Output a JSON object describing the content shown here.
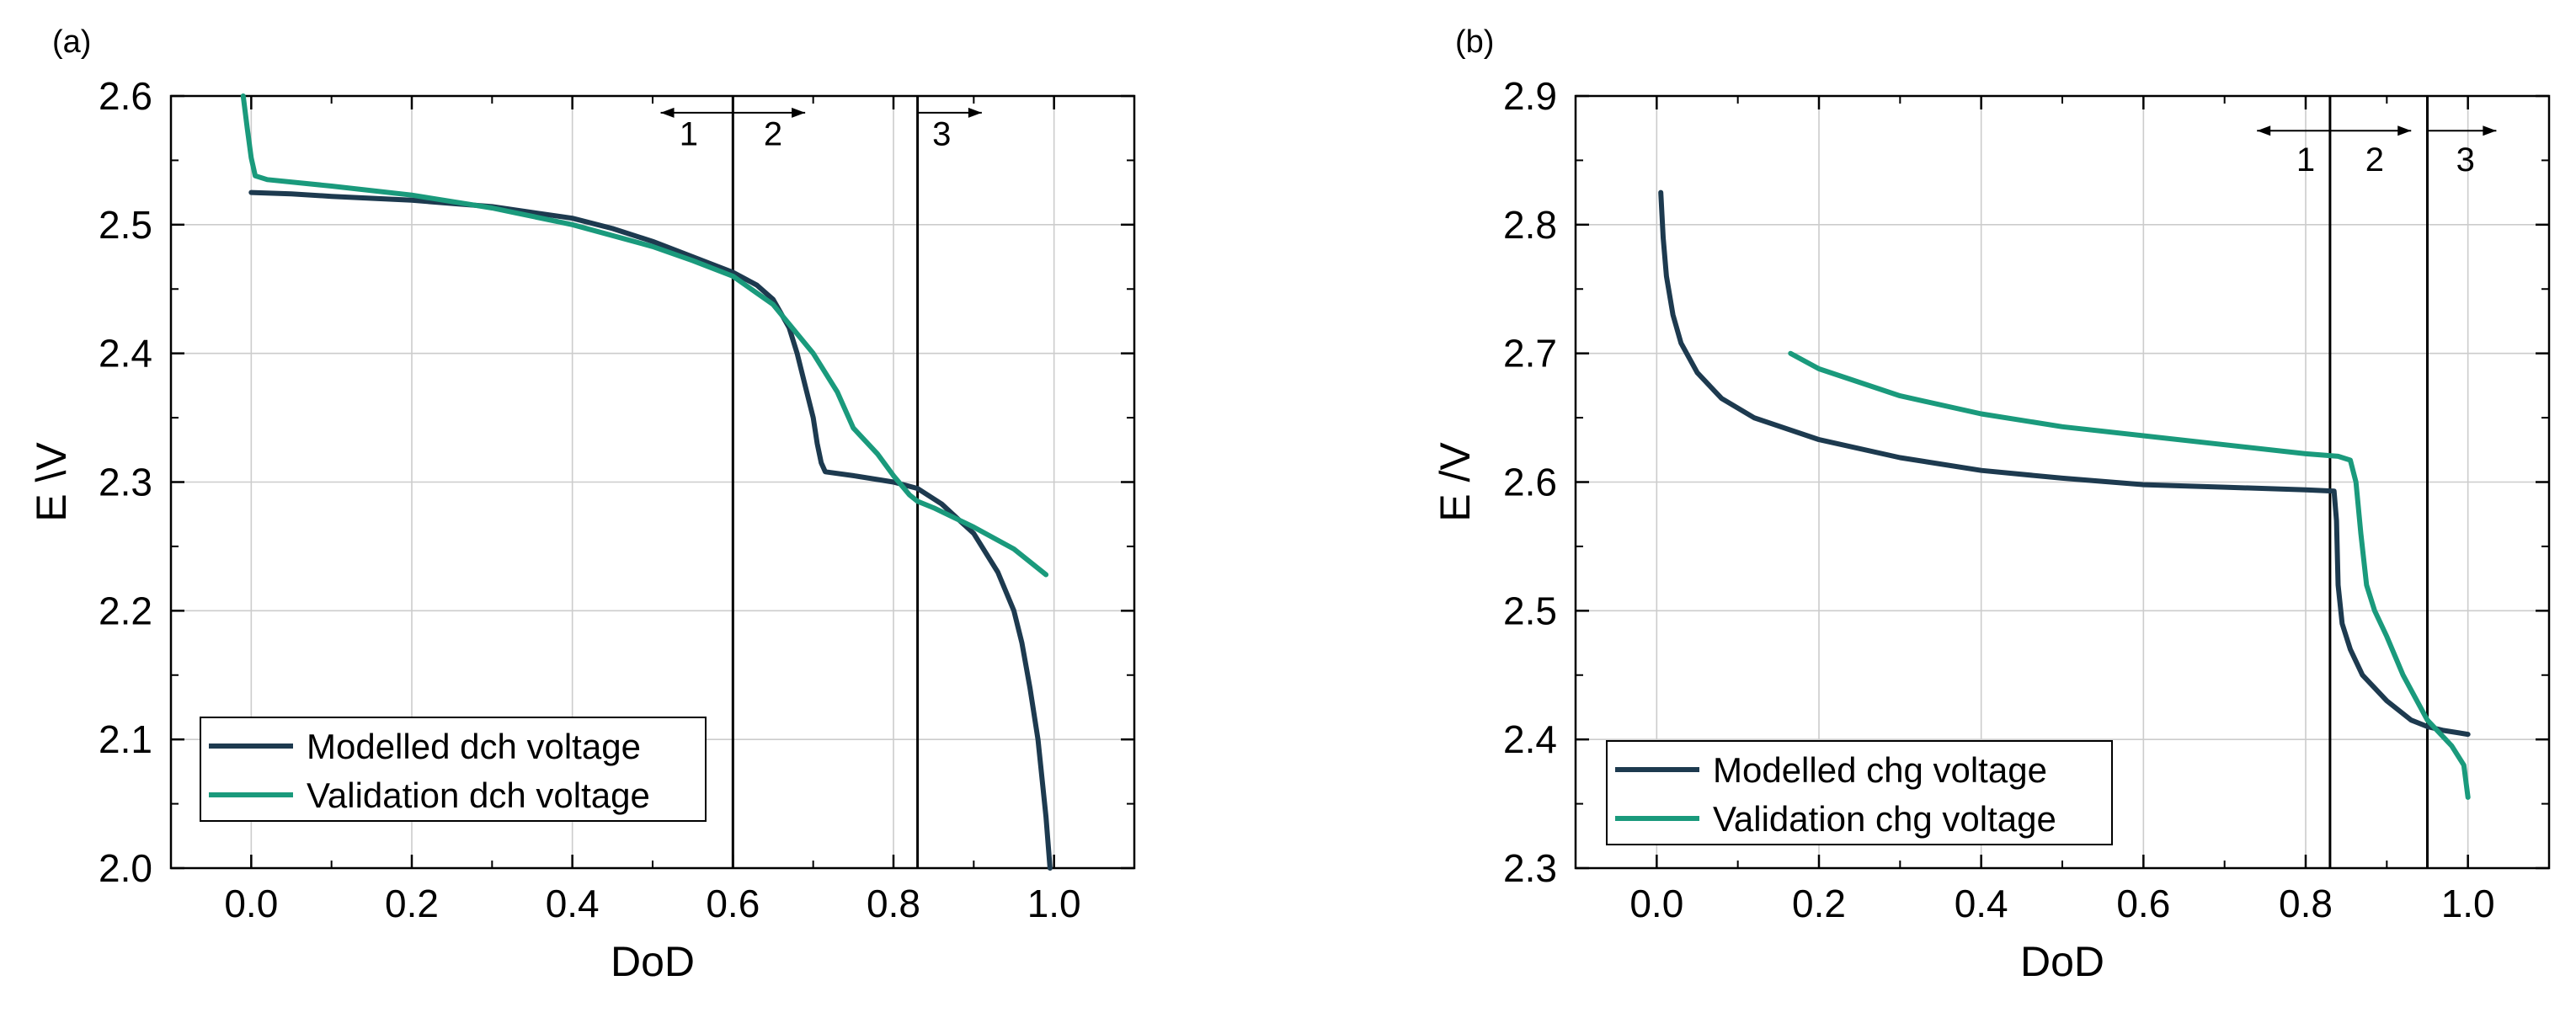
{
  "colors": {
    "modelled": "#1d3a4f",
    "validation": "#1a9a7c"
  },
  "chart_data": [
    {
      "type": "line",
      "panel_label": "(a)",
      "xlabel": "DoD",
      "ylabel": "E \\V",
      "xlim": [
        -0.1,
        1.1
      ],
      "ylim": [
        2.0,
        2.6
      ],
      "xticks": [
        0.0,
        0.2,
        0.4,
        0.6,
        0.8,
        1.0
      ],
      "xtick_labels": [
        "0.0",
        "0.2",
        "0.4",
        "0.6",
        "0.8",
        "1.0"
      ],
      "yticks": [
        2.0,
        2.1,
        2.2,
        2.3,
        2.4,
        2.5,
        2.6
      ],
      "ytick_labels": [
        "2.0",
        "2.1",
        "2.2",
        "2.3",
        "2.4",
        "2.5",
        "2.6"
      ],
      "grid": true,
      "legend_position": "bottom-left",
      "boundaries": [
        0.6,
        0.83
      ],
      "regions": [
        {
          "label": "1",
          "x": 0.545,
          "arrow_from": 0.6,
          "arrow_to": 0.51
        },
        {
          "label": "2",
          "x": 0.65,
          "arrow_from": 0.6,
          "arrow_to": 0.69
        },
        {
          "label": "3",
          "x": 0.86,
          "arrow_from": 0.83,
          "arrow_to": 0.91
        }
      ],
      "region_label_y": 2.571,
      "arrow_y": 2.587,
      "series": [
        {
          "name": "Modelled dch voltage",
          "color_key": "modelled",
          "x": [
            0.0,
            0.05,
            0.1,
            0.2,
            0.3,
            0.4,
            0.45,
            0.5,
            0.55,
            0.6,
            0.63,
            0.65,
            0.67,
            0.68,
            0.69,
            0.7,
            0.705,
            0.71,
            0.715,
            0.75,
            0.8,
            0.83,
            0.86,
            0.9,
            0.93,
            0.95,
            0.96,
            0.97,
            0.98,
            0.99,
            0.995
          ],
          "y": [
            2.525,
            2.524,
            2.522,
            2.519,
            2.514,
            2.505,
            2.497,
            2.487,
            2.475,
            2.463,
            2.453,
            2.442,
            2.42,
            2.4,
            2.375,
            2.35,
            2.33,
            2.315,
            2.308,
            2.305,
            2.3,
            2.295,
            2.283,
            2.26,
            2.23,
            2.2,
            2.175,
            2.14,
            2.1,
            2.04,
            2.0
          ]
        },
        {
          "name": "Validation dch voltage",
          "color_key": "validation",
          "x": [
            -0.01,
            -0.005,
            0.0,
            0.005,
            0.02,
            0.1,
            0.2,
            0.3,
            0.4,
            0.5,
            0.55,
            0.6,
            0.65,
            0.7,
            0.73,
            0.75,
            0.78,
            0.8,
            0.82,
            0.83,
            0.85,
            0.9,
            0.95,
            0.99
          ],
          "y": [
            2.6,
            2.575,
            2.552,
            2.538,
            2.535,
            2.53,
            2.523,
            2.513,
            2.5,
            2.483,
            2.472,
            2.46,
            2.438,
            2.4,
            2.37,
            2.342,
            2.322,
            2.305,
            2.29,
            2.285,
            2.28,
            2.265,
            2.248,
            2.228
          ]
        }
      ]
    },
    {
      "type": "line",
      "panel_label": "(b)",
      "xlabel": "DoD",
      "ylabel": "E /V",
      "xlim": [
        -0.1,
        1.1
      ],
      "ylim": [
        2.3,
        2.9
      ],
      "xticks": [
        0.0,
        0.2,
        0.4,
        0.6,
        0.8,
        1.0
      ],
      "xtick_labels": [
        "0.0",
        "0.2",
        "0.4",
        "0.6",
        "0.8",
        "1.0"
      ],
      "yticks": [
        2.3,
        2.4,
        2.5,
        2.6,
        2.7,
        2.8,
        2.9
      ],
      "ytick_labels": [
        "2.3",
        "2.4",
        "2.5",
        "2.6",
        "2.7",
        "2.8",
        "2.9"
      ],
      "grid": true,
      "legend_position": "bottom-left",
      "boundaries": [
        0.83,
        0.95
      ],
      "regions": [
        {
          "label": "1",
          "x": 0.8,
          "arrow_from": 0.83,
          "arrow_to": 0.74
        },
        {
          "label": "2",
          "x": 0.885,
          "arrow_from": 0.83,
          "arrow_to": 0.93
        },
        {
          "label": "3",
          "x": 0.997,
          "arrow_from": 0.95,
          "arrow_to": 1.035
        }
      ],
      "region_label_y": 2.851,
      "arrow_y": 2.873,
      "series": [
        {
          "name": "Modelled chg voltage",
          "color_key": "modelled",
          "x": [
            0.005,
            0.008,
            0.012,
            0.02,
            0.03,
            0.05,
            0.08,
            0.12,
            0.2,
            0.3,
            0.4,
            0.5,
            0.6,
            0.7,
            0.8,
            0.835,
            0.838,
            0.84,
            0.845,
            0.855,
            0.87,
            0.9,
            0.93,
            0.95,
            0.97,
            1.0
          ],
          "y": [
            2.825,
            2.79,
            2.76,
            2.73,
            2.708,
            2.685,
            2.665,
            2.65,
            2.633,
            2.619,
            2.609,
            2.603,
            2.598,
            2.596,
            2.594,
            2.593,
            2.57,
            2.52,
            2.49,
            2.47,
            2.45,
            2.43,
            2.415,
            2.41,
            2.407,
            2.404
          ]
        },
        {
          "name": "Validation chg voltage",
          "color_key": "validation",
          "x": [
            0.165,
            0.2,
            0.3,
            0.4,
            0.5,
            0.6,
            0.7,
            0.8,
            0.84,
            0.855,
            0.862,
            0.868,
            0.875,
            0.885,
            0.9,
            0.92,
            0.95,
            0.98,
            0.995,
            1.0
          ],
          "y": [
            2.7,
            2.688,
            2.667,
            2.653,
            2.643,
            2.636,
            2.629,
            2.622,
            2.62,
            2.617,
            2.6,
            2.56,
            2.52,
            2.5,
            2.48,
            2.45,
            2.415,
            2.395,
            2.38,
            2.355
          ]
        }
      ]
    }
  ]
}
